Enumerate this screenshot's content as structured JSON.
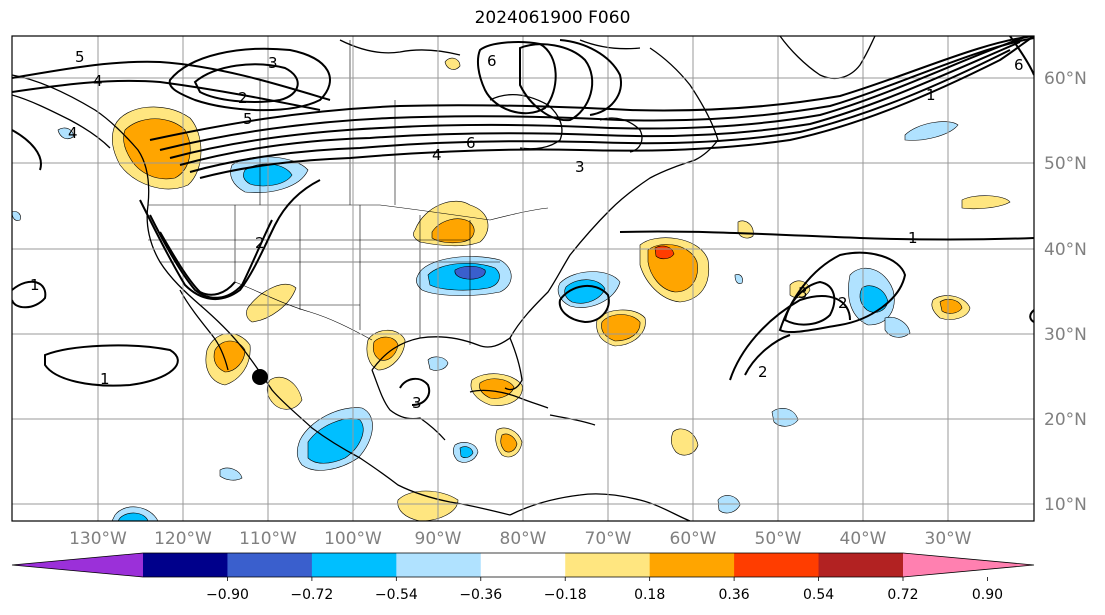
{
  "title": "2024061900 F060",
  "lat_labels": [
    "60°N",
    "50°N",
    "40°N",
    "30°N",
    "20°N",
    "10°N"
  ],
  "lon_labels": [
    "130°W",
    "120°W",
    "110°W",
    "100°W",
    "90°W",
    "80°W",
    "70°W",
    "60°W",
    "50°W",
    "40°W",
    "30°W"
  ],
  "colorbar": {
    "ticks": [
      "−0.90",
      "−0.72",
      "−0.54",
      "−0.36",
      "−0.18",
      "0.18",
      "0.36",
      "0.54",
      "0.72",
      "0.90"
    ],
    "colors": [
      "#9b30d9",
      "#00008b",
      "#3a5fcd",
      "#00bfff",
      "#b0e2ff",
      "#ffffff",
      "#ffe680",
      "#ffa500",
      "#ff3d00",
      "#b22222",
      "#ff80b0"
    ]
  },
  "contour_labels": [
    "5",
    "4",
    "3",
    "2",
    "5",
    "6",
    "4",
    "3",
    "1",
    "1",
    "1",
    "2",
    "2",
    "2",
    "3",
    "6",
    "1",
    "4",
    "6",
    "3"
  ],
  "marker": "black-dot"
}
